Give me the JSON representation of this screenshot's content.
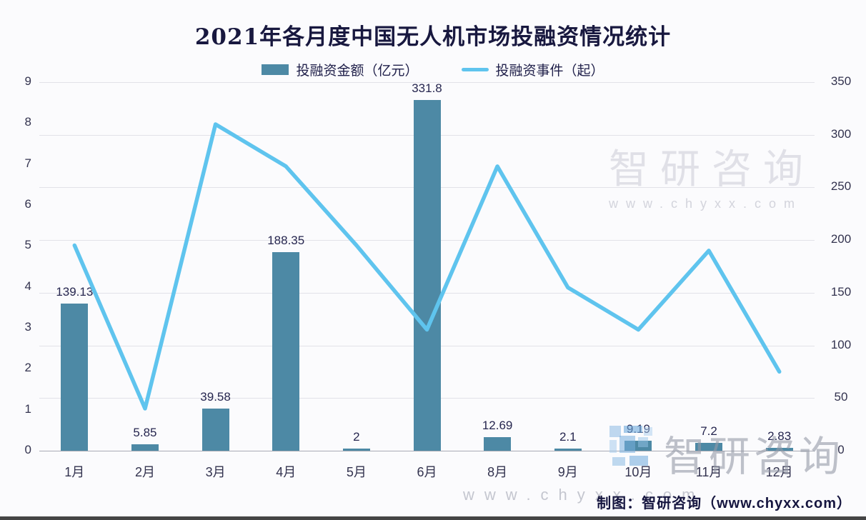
{
  "chart_data": {
    "type": "bar+line",
    "title": "2021年各月度中国无人机市场投融资情况统计",
    "categories": [
      "1月",
      "2月",
      "3月",
      "4月",
      "5月",
      "6月",
      "8月",
      "9月",
      "10月",
      "11月",
      "12月"
    ],
    "series": [
      {
        "name": "投融资金额（亿元）",
        "type": "bar",
        "axis": "hidden-bar-scale",
        "values": [
          139.13,
          5.85,
          39.58,
          188.35,
          2,
          331.8,
          12.69,
          2.1,
          9.19,
          7.2,
          2.83
        ],
        "color": "#4d89a5",
        "data_labels_shown": true
      },
      {
        "name": "投融资事件（起）",
        "type": "line",
        "axis": "right",
        "values": [
          195,
          40,
          310,
          270,
          195,
          115,
          270,
          155,
          115,
          190,
          75
        ],
        "color": "#5fc4ee",
        "data_labels_shown": false
      }
    ],
    "left_axis": {
      "ticks": [
        0,
        1,
        2,
        3,
        4,
        5,
        6,
        7,
        8,
        9
      ],
      "min": 0,
      "max": 9
    },
    "right_axis": {
      "ticks": [
        0,
        50,
        100,
        150,
        200,
        250,
        300,
        350
      ],
      "min": 0,
      "max": 350
    },
    "bar_visual_max": 349,
    "grid": "horizontal gridlines aligned to right-axis ticks",
    "legend_position": "top-center"
  },
  "watermarks": {
    "top": {
      "brand": "智研咨询",
      "url": "www.chyxx.com"
    },
    "bottom": {
      "brand": "智研咨询",
      "url": "www.chyxx.com"
    }
  },
  "caption": {
    "text": "制图：智研咨询（www.chyxx.com）"
  },
  "colors": {
    "bar": "#4d89a5",
    "line": "#5fc4ee",
    "background": "#fbfbfd",
    "title_text": "#18183f",
    "axis_text": "#33334f",
    "gridline": "#e2e2e8"
  }
}
